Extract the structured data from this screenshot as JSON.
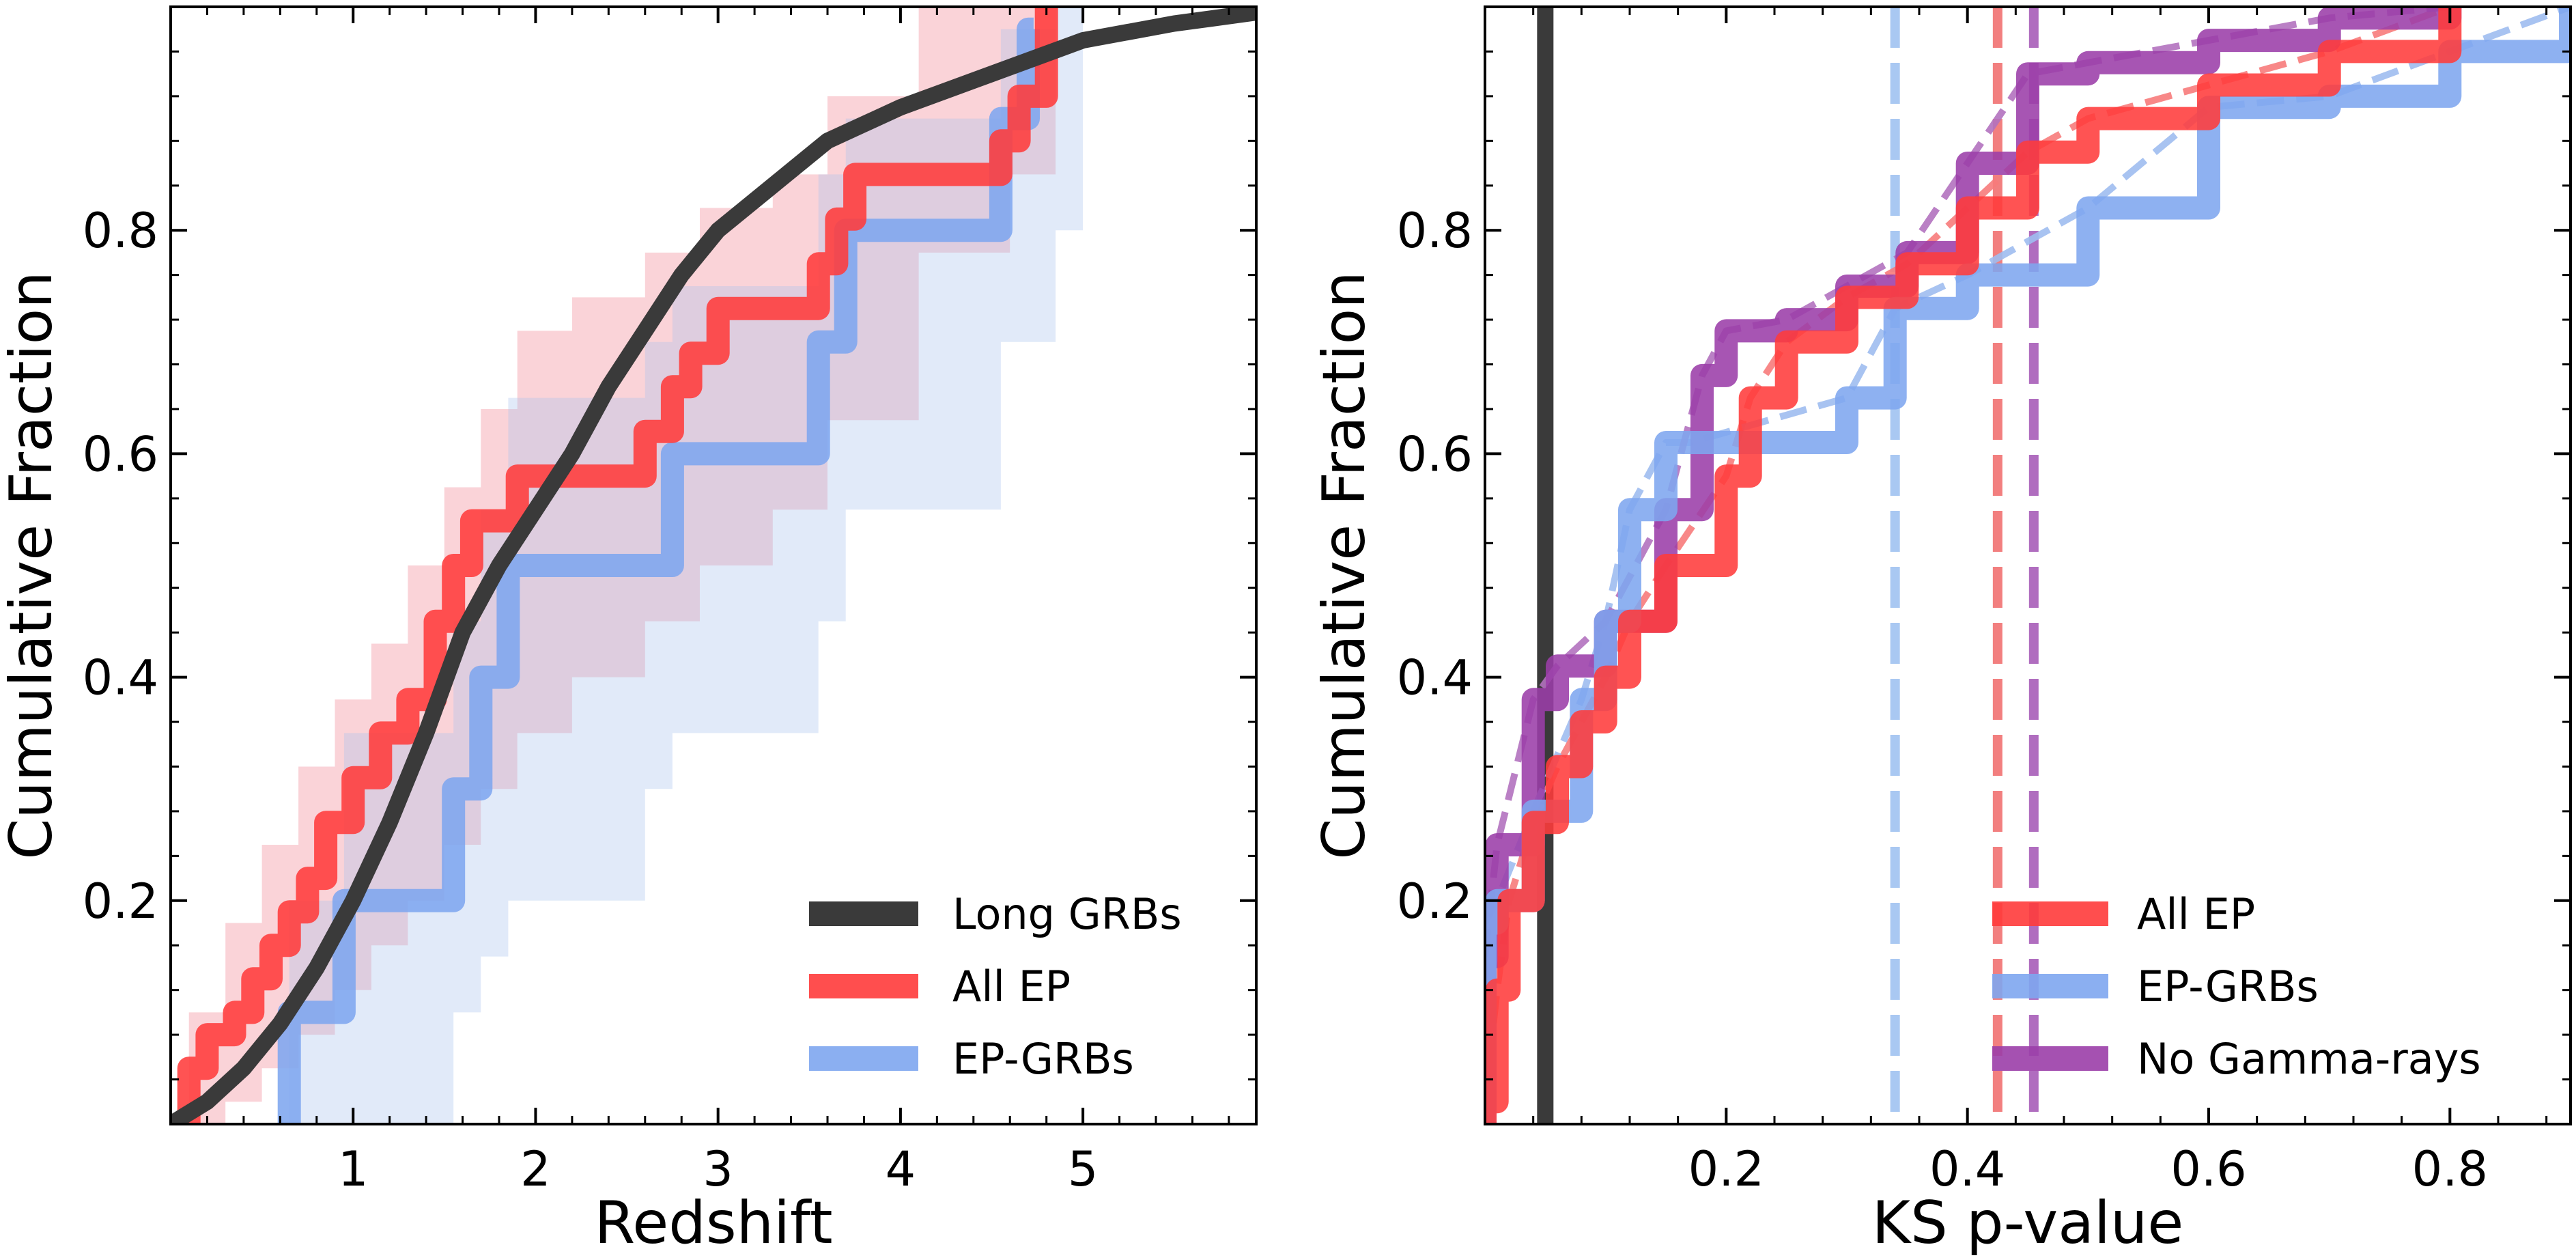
{
  "chart_data": [
    {
      "type": "line",
      "xlabel": "Redshift",
      "ylabel": "Cumulative Fraction",
      "xlim": [
        0,
        5.95
      ],
      "ylim": [
        0,
        1
      ],
      "xticks": [
        1,
        2,
        3,
        4,
        5
      ],
      "xtick_labels": [
        "1",
        "2",
        "3",
        "4",
        "5"
      ],
      "yticks": [
        0.2,
        0.4,
        0.6,
        0.8
      ],
      "ytick_labels": [
        "0.2",
        "0.4",
        "0.6",
        "0.8"
      ],
      "legend_position": "lower-right",
      "series": [
        {
          "name": "Long GRBs",
          "color": "#3a3a3a",
          "style": "smooth",
          "x": [
            0.0,
            0.2,
            0.4,
            0.6,
            0.8,
            1.0,
            1.2,
            1.4,
            1.6,
            1.8,
            2.0,
            2.2,
            2.4,
            2.6,
            2.8,
            3.0,
            3.3,
            3.6,
            4.0,
            4.5,
            5.0,
            5.5,
            5.95
          ],
          "values": [
            0.0,
            0.02,
            0.05,
            0.09,
            0.14,
            0.2,
            0.27,
            0.35,
            0.44,
            0.5,
            0.55,
            0.6,
            0.66,
            0.71,
            0.76,
            0.8,
            0.84,
            0.88,
            0.91,
            0.94,
            0.97,
            0.985,
            0.995
          ]
        },
        {
          "name": "All EP",
          "color": "#ff3b3b",
          "style": "step",
          "x": [
            0.1,
            0.2,
            0.35,
            0.45,
            0.55,
            0.65,
            0.75,
            0.85,
            1.0,
            1.15,
            1.3,
            1.45,
            1.55,
            1.65,
            1.9,
            2.6,
            2.75,
            2.85,
            3.0,
            3.2,
            3.55,
            3.65,
            3.75,
            4.05,
            4.55,
            4.65,
            4.8
          ],
          "values": [
            0.05,
            0.08,
            0.1,
            0.13,
            0.16,
            0.19,
            0.22,
            0.27,
            0.31,
            0.35,
            0.38,
            0.45,
            0.5,
            0.54,
            0.58,
            0.62,
            0.66,
            0.69,
            0.73,
            0.73,
            0.77,
            0.81,
            0.85,
            0.85,
            0.88,
            0.92,
            1.0
          ],
          "band": {
            "color": "#f08090",
            "x": [
              0.1,
              0.3,
              0.5,
              0.7,
              0.9,
              1.1,
              1.3,
              1.5,
              1.7,
              1.9,
              2.2,
              2.6,
              2.9,
              3.3,
              3.6,
              4.1,
              4.6,
              4.85
            ],
            "low": [
              0.0,
              0.02,
              0.05,
              0.08,
              0.12,
              0.16,
              0.2,
              0.25,
              0.3,
              0.35,
              0.4,
              0.45,
              0.5,
              0.55,
              0.63,
              0.78,
              0.85,
              1.0
            ],
            "high": [
              0.1,
              0.18,
              0.25,
              0.32,
              0.38,
              0.43,
              0.5,
              0.57,
              0.64,
              0.71,
              0.74,
              0.78,
              0.82,
              0.85,
              0.92,
              1.0,
              1.0,
              1.0
            ]
          }
        },
        {
          "name": "EP-GRBs",
          "color": "#7ea6ef",
          "style": "step",
          "x": [
            0.65,
            0.95,
            1.55,
            1.7,
            1.85,
            2.6,
            2.75,
            3.55,
            3.7,
            4.55,
            4.7
          ],
          "values": [
            0.1,
            0.2,
            0.3,
            0.4,
            0.5,
            0.5,
            0.6,
            0.7,
            0.8,
            0.9,
            0.98
          ],
          "band": {
            "color": "#a8c2ee",
            "x": [
              0.65,
              0.95,
              1.55,
              1.7,
              1.85,
              2.6,
              2.75,
              3.55,
              3.7,
              4.55,
              4.85
            ],
            "low": [
              0.0,
              0.0,
              0.1,
              0.15,
              0.2,
              0.3,
              0.35,
              0.45,
              0.55,
              0.7,
              0.8
            ],
            "high": [
              0.2,
              0.35,
              0.45,
              0.55,
              0.65,
              0.7,
              0.75,
              0.85,
              0.9,
              0.98,
              1.0
            ]
          }
        }
      ]
    },
    {
      "type": "line",
      "xlabel": "KS p-value",
      "ylabel": "Cumulative Fraction",
      "xlim": [
        0,
        0.9
      ],
      "ylim": [
        0,
        1
      ],
      "xticks": [
        0.2,
        0.4,
        0.6,
        0.8
      ],
      "xtick_labels": [
        "0.2",
        "0.4",
        "0.6",
        "0.8"
      ],
      "yticks": [
        0.2,
        0.4,
        0.6,
        0.8
      ],
      "ytick_labels": [
        "0.2",
        "0.4",
        "0.6",
        "0.8"
      ],
      "legend_position": "lower-right",
      "reference_lines": [
        {
          "x": 0.05,
          "color": "#3a3a3a",
          "style": "solid"
        },
        {
          "x": 0.34,
          "color": "#a9c8f2",
          "style": "dashed"
        },
        {
          "x": 0.425,
          "color": "#f27f7f",
          "style": "dashed"
        },
        {
          "x": 0.455,
          "color": "#b06dbf",
          "style": "dashed"
        }
      ],
      "series": [
        {
          "name": "All EP",
          "color": "#ff3b3b",
          "style": "step",
          "x": [
            0.0,
            0.01,
            0.02,
            0.04,
            0.06,
            0.08,
            0.1,
            0.12,
            0.15,
            0.2,
            0.22,
            0.25,
            0.3,
            0.35,
            0.4,
            0.45,
            0.5,
            0.6,
            0.7,
            0.8
          ],
          "values": [
            0.02,
            0.12,
            0.2,
            0.27,
            0.32,
            0.36,
            0.4,
            0.45,
            0.5,
            0.58,
            0.65,
            0.7,
            0.74,
            0.77,
            0.82,
            0.87,
            0.9,
            0.93,
            0.96,
            1.0
          ],
          "fit_color": "#f77b7b"
        },
        {
          "name": "EP-GRBs",
          "color": "#7ea6ef",
          "style": "step",
          "x": [
            0.0,
            0.01,
            0.04,
            0.08,
            0.1,
            0.12,
            0.15,
            0.17,
            0.3,
            0.34,
            0.4,
            0.5,
            0.6,
            0.7,
            0.8,
            0.9
          ],
          "values": [
            0.18,
            0.2,
            0.28,
            0.38,
            0.45,
            0.55,
            0.61,
            0.61,
            0.65,
            0.73,
            0.76,
            0.82,
            0.91,
            0.92,
            0.96,
            1.0
          ],
          "fit_color": "#9fbdf0"
        },
        {
          "name": "No Gamma-rays",
          "color": "#9b3ea8",
          "style": "step",
          "x": [
            0.0,
            0.01,
            0.04,
            0.06,
            0.1,
            0.15,
            0.18,
            0.2,
            0.25,
            0.3,
            0.35,
            0.4,
            0.45,
            0.5,
            0.6,
            0.7,
            0.8
          ],
          "values": [
            0.15,
            0.25,
            0.38,
            0.41,
            0.45,
            0.55,
            0.67,
            0.71,
            0.72,
            0.75,
            0.78,
            0.86,
            0.94,
            0.95,
            0.97,
            0.99,
            1.0
          ],
          "fit_color": "#b372bf"
        }
      ]
    }
  ]
}
